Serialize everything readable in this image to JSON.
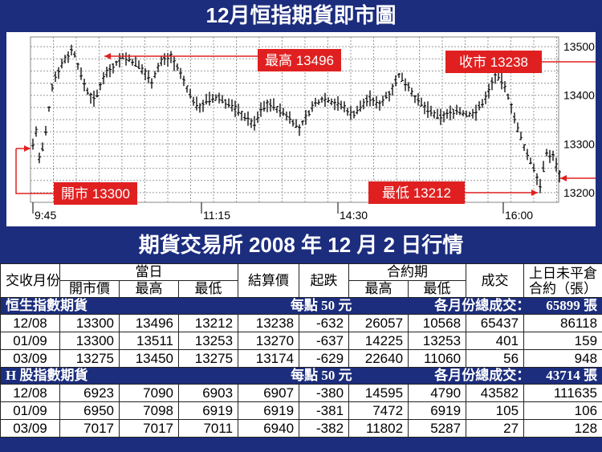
{
  "title": "12月恒指期貨即市圖",
  "chart_data": {
    "type": "candlestick",
    "x_ticks": [
      "9:45",
      "11:15",
      "14:30",
      "16:00"
    ],
    "y_ticks": [
      13200,
      13300,
      13400,
      13500
    ],
    "ylim": [
      13180,
      13520
    ],
    "grid": true,
    "annotations": [
      {
        "label": "最高 13496",
        "value": 13496
      },
      {
        "label": "收市 13238",
        "value": 13238
      },
      {
        "label": "開市 13300",
        "value": 13300
      },
      {
        "label": "最低 13212",
        "value": 13212
      }
    ],
    "colors": {
      "annotation": "#e02020",
      "candle": "#000000",
      "grid": "#999999"
    }
  },
  "section_title": "期貨交易所 2008 年 12 月 2 日行情",
  "table": {
    "headers": {
      "month": "交收月份",
      "day_group": "當日",
      "open": "開市價",
      "high": "最高",
      "low": "最低",
      "settle": "結算價",
      "change": "起跌",
      "contract_group": "合約期",
      "c_high": "最高",
      "c_low": "最低",
      "volume": "成交",
      "oi": "上日未平倉合約（張）"
    },
    "sections": [
      {
        "name": "恒生指數期貨",
        "per_point": "每點 50 元",
        "volume_label": "各月份總成交：",
        "volume_total": "65899 張",
        "rows": [
          [
            "12/08",
            "13300",
            "13496",
            "13212",
            "13238",
            "-632",
            "26057",
            "10568",
            "65437",
            "86118"
          ],
          [
            "01/09",
            "13300",
            "13511",
            "13253",
            "13270",
            "-637",
            "14225",
            "13253",
            "401",
            "159"
          ],
          [
            "03/09",
            "13275",
            "13450",
            "13275",
            "13174",
            "-629",
            "22640",
            "11060",
            "56",
            "948"
          ]
        ]
      },
      {
        "name": "H 股指數期貨",
        "per_point": "每點 50 元",
        "volume_label": "各月份總成交：",
        "volume_total": "43714 張",
        "rows": [
          [
            "12/08",
            "6923",
            "7090",
            "6903",
            "6907",
            "-380",
            "14595",
            "4790",
            "43582",
            "111635"
          ],
          [
            "01/09",
            "6950",
            "7098",
            "6919",
            "6919",
            "-381",
            "7472",
            "6919",
            "105",
            "106"
          ],
          [
            "03/09",
            "7017",
            "7017",
            "7011",
            "6940",
            "-382",
            "11802",
            "5287",
            "27",
            "128"
          ]
        ]
      }
    ]
  }
}
